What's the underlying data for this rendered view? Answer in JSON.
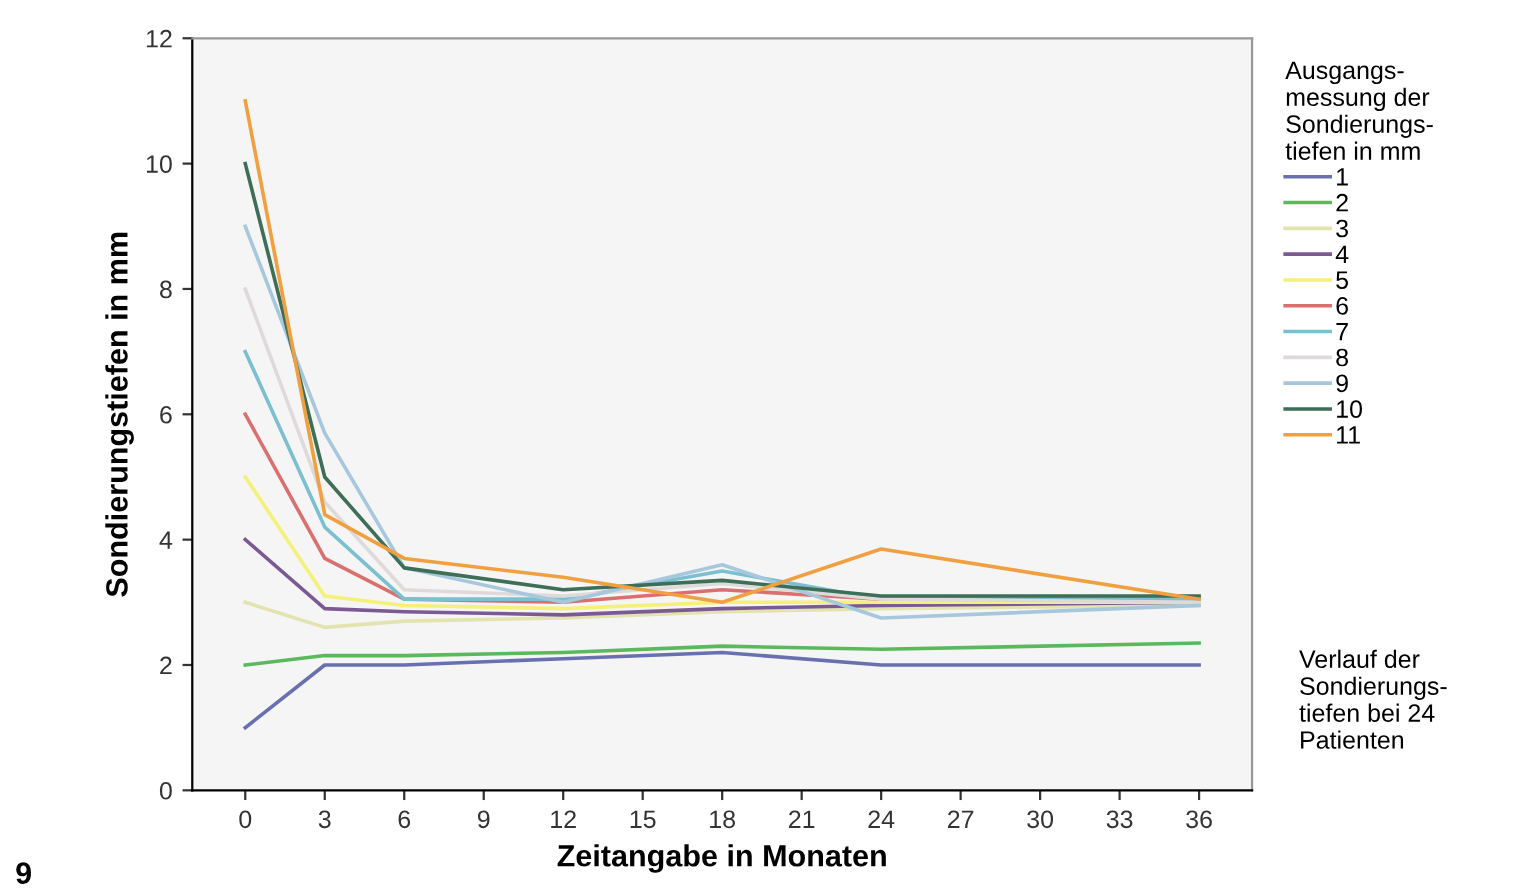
{
  "chart_data": {
    "type": "line",
    "xlabel": "Zeitangabe in Monaten",
    "ylabel": "Sondierungstiefen in mm",
    "legend_title": "Ausgangs-\nmessung der\nSondierungs-\ntiefen in mm",
    "legend": "right",
    "grid": false,
    "marker": "none",
    "line_style": "solid",
    "x": [
      0,
      3,
      6,
      12,
      18,
      24,
      36
    ],
    "xlim": [
      -2,
      38
    ],
    "xticks": [
      0,
      3,
      6,
      9,
      12,
      15,
      18,
      21,
      24,
      27,
      30,
      33,
      36
    ],
    "ylim": [
      0,
      12
    ],
    "yticks": [
      0,
      2,
      4,
      6,
      8,
      10,
      12
    ],
    "series": [
      {
        "name": "1",
        "color": "#6870b0",
        "values": [
          1,
          2,
          2,
          2.1,
          2.2,
          2.0,
          2.0
        ]
      },
      {
        "name": "2",
        "color": "#5cb85c",
        "values": [
          2,
          2.15,
          2.15,
          2.2,
          2.3,
          2.25,
          2.35
        ]
      },
      {
        "name": "3",
        "color": "#e3e3b0",
        "values": [
          3,
          2.6,
          2.7,
          2.75,
          2.85,
          2.9,
          2.95
        ]
      },
      {
        "name": "4",
        "color": "#7b5a94",
        "values": [
          4,
          2.9,
          2.85,
          2.8,
          2.9,
          2.95,
          3.0
        ]
      },
      {
        "name": "5",
        "color": "#f5f07a",
        "values": [
          5,
          3.1,
          2.95,
          2.9,
          3.0,
          3.0,
          3.0
        ]
      },
      {
        "name": "6",
        "color": "#d9706f",
        "values": [
          6,
          3.7,
          3.05,
          3.0,
          3.2,
          3.05,
          3.05
        ]
      },
      {
        "name": "7",
        "color": "#7bbfd0",
        "values": [
          7,
          4.2,
          3.05,
          3.05,
          3.5,
          3.05,
          3.05
        ]
      },
      {
        "name": "8",
        "color": "#dedada",
        "values": [
          8,
          4.6,
          3.2,
          3.1,
          3.3,
          3.05,
          3.0
        ]
      },
      {
        "name": "9",
        "color": "#a7c8dc",
        "values": [
          9,
          5.7,
          3.55,
          3.0,
          3.6,
          2.75,
          2.95
        ]
      },
      {
        "name": "10",
        "color": "#3e6e58",
        "values": [
          10,
          5.0,
          3.55,
          3.2,
          3.35,
          3.1,
          3.1
        ]
      },
      {
        "name": "11",
        "color": "#f0a040",
        "values": [
          11,
          4.4,
          3.7,
          3.4,
          3.0,
          3.85,
          3.05
        ]
      }
    ],
    "annotations": [
      "Verlauf der\nSondierungs-\ntiefen bei 24\nPatienten",
      "9"
    ]
  }
}
